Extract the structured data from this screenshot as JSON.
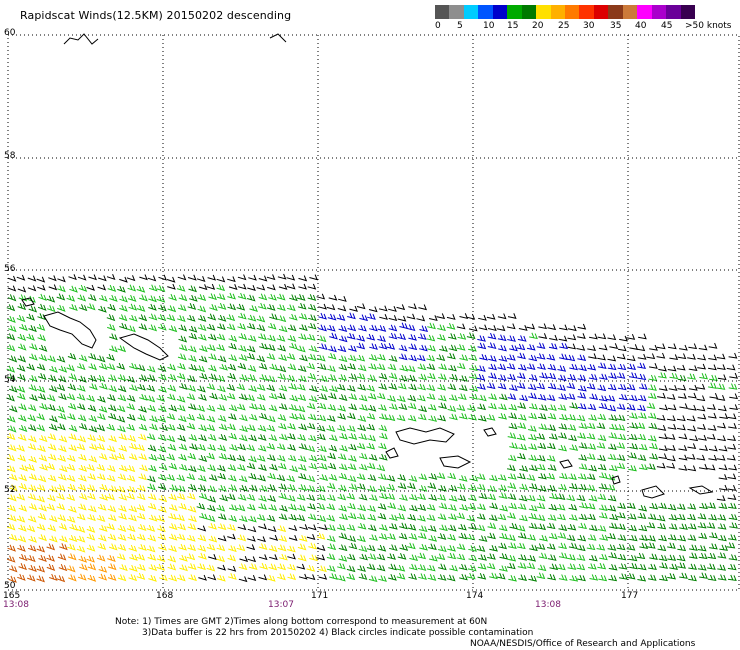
{
  "title": "Rapidscat Winds(12.5KM) 20150202 descending",
  "legend": {
    "colors": [
      "#555555",
      "#8e8e8e",
      "#00ccff",
      "#0055ff",
      "#0000cc",
      "#00aa00",
      "#007a00",
      "#ffe000",
      "#ffb000",
      "#ff7a00",
      "#ff3300",
      "#dd0000",
      "#8b3a1a",
      "#cc7a3a",
      "#ff00ff",
      "#aa00cc",
      "#6a0099",
      "#380050"
    ],
    "labels": [
      "0",
      "5",
      "10",
      "15",
      "20",
      "25",
      "30",
      "35",
      "40",
      "45",
      ">50 knots"
    ]
  },
  "axes": {
    "lat_labels": [
      "60",
      "58",
      "56",
      "54",
      "52",
      "50"
    ],
    "lon_labels": [
      "165",
      "168",
      "171",
      "174",
      "177"
    ],
    "time_labels": [
      "13:08",
      "13:07",
      "13:08"
    ]
  },
  "notes": {
    "line1": "Note: 1) Times are GMT 2)Times along bottom correspond to measurement at 60N",
    "line2": "3)Data buffer is 22 hrs from 20150202 4) Black circles indicate possible contamination",
    "line3": "NOAA/NESDIS/Office of Research and Applications"
  },
  "wind_colors": {
    "black": "#000000",
    "blue": "#0000cc",
    "green_light": "#1fbf1f",
    "green_dark": "#008000",
    "yellow": "#ffee00",
    "orange": "#ff9900",
    "brown": "#cc5500"
  }
}
